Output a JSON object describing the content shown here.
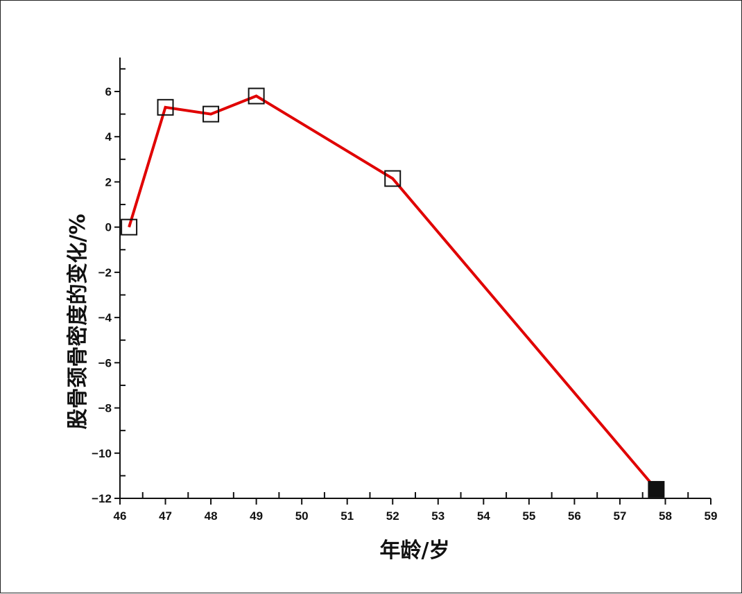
{
  "chart_data": {
    "type": "line",
    "xlabel": "年龄/岁",
    "ylabel": "股骨颈骨密度的变化/%",
    "xlim": [
      46,
      59
    ],
    "ylim": [
      -12,
      7.5
    ],
    "x_ticks": [
      46,
      47,
      48,
      49,
      50,
      51,
      52,
      53,
      54,
      55,
      56,
      57,
      58,
      59
    ],
    "y_ticks": [
      6,
      4,
      2,
      0,
      -2,
      -4,
      -6,
      -8,
      -10,
      -12
    ],
    "y_tick_labels": [
      "6",
      "4",
      "2",
      "0",
      "−2",
      "−4",
      "−6",
      "−8",
      "−10",
      "−12"
    ],
    "grid": false,
    "series": [
      {
        "line_color": "#e00000",
        "points": [
          {
            "x": 46.2,
            "y": 0.0,
            "marker": "open-square"
          },
          {
            "x": 47.0,
            "y": 5.3,
            "marker": "open-square"
          },
          {
            "x": 48.0,
            "y": 5.0,
            "marker": "open-square"
          },
          {
            "x": 49.0,
            "y": 5.8,
            "marker": "open-square"
          },
          {
            "x": 52.0,
            "y": 2.15,
            "marker": "open-square"
          },
          {
            "x": 57.8,
            "y": -11.6,
            "marker": "filled-square"
          }
        ]
      }
    ]
  }
}
